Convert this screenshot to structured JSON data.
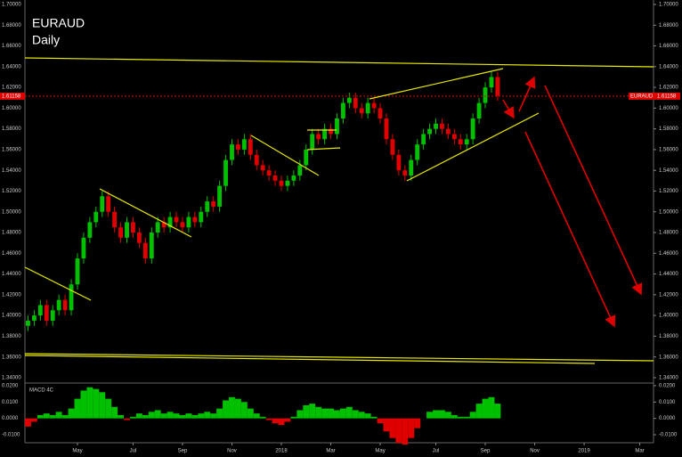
{
  "chart_data": {
    "type": "candlestick",
    "title": "EURAUD",
    "subtitle": "Daily",
    "categories": [
      null,
      null,
      null,
      null,
      null,
      null,
      null,
      null,
      "May",
      null,
      null,
      null,
      null,
      null,
      null,
      null,
      null,
      "Jul",
      null,
      null,
      null,
      null,
      null,
      null,
      null,
      "Sep",
      null,
      null,
      null,
      null,
      null,
      null,
      null,
      "Nov",
      null,
      null,
      null,
      null,
      null,
      null,
      null,
      "2018",
      null,
      null,
      null,
      null,
      null,
      null,
      null,
      "Mar",
      null,
      null,
      null,
      null,
      null,
      null,
      null,
      "May",
      null,
      null,
      null,
      null,
      null,
      null,
      null,
      null,
      "Jul",
      null,
      null,
      null,
      null,
      null,
      null,
      null,
      "Sep",
      null,
      null,
      null,
      null,
      null,
      null,
      null,
      "Nov",
      null,
      null,
      null,
      null,
      null,
      null,
      null,
      "2019",
      null,
      null,
      null,
      null,
      null,
      null,
      null,
      null,
      "Mar"
    ],
    "open": [
      1.39,
      1.395,
      1.4,
      1.41,
      1.395,
      1.405,
      1.415,
      1.405,
      1.43,
      1.455,
      1.475,
      1.49,
      1.5,
      1.515,
      1.5,
      1.485,
      1.475,
      1.49,
      1.48,
      1.47,
      1.455,
      1.48,
      1.49,
      1.485,
      1.495,
      1.49,
      1.485,
      1.495,
      1.49,
      1.5,
      1.51,
      1.505,
      1.525,
      1.55,
      1.565,
      1.56,
      1.57,
      1.555,
      1.545,
      1.54,
      1.535,
      1.53,
      1.525,
      1.53,
      1.535,
      1.545,
      1.56,
      1.575,
      1.57,
      1.58,
      1.575,
      1.59,
      1.605,
      1.61,
      1.6,
      1.595,
      1.605,
      1.6,
      1.59,
      1.57,
      1.555,
      1.54,
      1.535,
      1.55,
      1.565,
      1.575,
      1.58,
      1.585,
      1.58,
      1.575,
      1.57,
      1.565,
      1.57,
      1.59,
      1.605,
      1.62,
      1.63,
      null,
      null,
      null,
      null,
      null,
      null,
      null,
      null,
      null,
      null,
      null,
      null,
      null,
      null,
      null,
      null,
      null,
      null,
      null,
      null,
      null,
      null,
      null
    ],
    "high": [
      1.4,
      1.405,
      1.415,
      1.415,
      1.41,
      1.42,
      1.42,
      1.435,
      1.46,
      1.48,
      1.495,
      1.505,
      1.52,
      1.52,
      1.505,
      1.49,
      1.495,
      1.495,
      1.485,
      1.475,
      1.485,
      1.495,
      1.495,
      1.5,
      1.5,
      1.495,
      1.5,
      1.5,
      1.505,
      1.515,
      1.515,
      1.53,
      1.555,
      1.57,
      1.57,
      1.575,
      1.575,
      1.56,
      1.55,
      1.545,
      1.54,
      1.535,
      1.535,
      1.54,
      1.55,
      1.565,
      1.58,
      1.58,
      1.585,
      1.585,
      1.595,
      1.61,
      1.615,
      1.615,
      1.605,
      1.61,
      1.61,
      1.605,
      1.595,
      1.575,
      1.56,
      1.545,
      1.555,
      1.57,
      1.58,
      1.585,
      1.59,
      1.59,
      1.585,
      1.58,
      1.575,
      1.575,
      1.595,
      1.61,
      1.625,
      1.635,
      1.635,
      null,
      null,
      null,
      null,
      null,
      null,
      null,
      null,
      null,
      null,
      null,
      null,
      null,
      null,
      null,
      null,
      null,
      null,
      null,
      null,
      null,
      null,
      null
    ],
    "low": [
      1.385,
      1.39,
      1.395,
      1.39,
      1.39,
      1.4,
      1.4,
      1.4,
      1.425,
      1.45,
      1.47,
      1.485,
      1.495,
      1.495,
      1.48,
      1.47,
      1.47,
      1.475,
      1.465,
      1.45,
      1.45,
      1.475,
      1.48,
      1.48,
      1.485,
      1.48,
      1.48,
      1.485,
      1.485,
      1.495,
      1.5,
      1.5,
      1.52,
      1.545,
      1.555,
      1.555,
      1.55,
      1.54,
      1.535,
      1.53,
      1.525,
      1.52,
      1.52,
      1.525,
      1.53,
      1.54,
      1.555,
      1.565,
      1.565,
      1.57,
      1.57,
      1.585,
      1.6,
      1.595,
      1.59,
      1.59,
      1.595,
      1.585,
      1.565,
      1.55,
      1.535,
      1.53,
      1.53,
      1.545,
      1.56,
      1.57,
      1.575,
      1.575,
      1.57,
      1.565,
      1.56,
      1.56,
      1.565,
      1.585,
      1.6,
      1.615,
      1.607,
      null,
      null,
      null,
      null,
      null,
      null,
      null,
      null,
      null,
      null,
      null,
      null,
      null,
      null,
      null,
      null,
      null,
      null,
      null,
      null,
      null,
      null,
      null
    ],
    "close": [
      1.395,
      1.4,
      1.41,
      1.395,
      1.405,
      1.415,
      1.405,
      1.43,
      1.455,
      1.475,
      1.49,
      1.5,
      1.515,
      1.5,
      1.485,
      1.475,
      1.49,
      1.48,
      1.47,
      1.455,
      1.48,
      1.49,
      1.485,
      1.495,
      1.49,
      1.485,
      1.495,
      1.49,
      1.5,
      1.51,
      1.505,
      1.525,
      1.55,
      1.565,
      1.56,
      1.57,
      1.555,
      1.545,
      1.54,
      1.535,
      1.53,
      1.525,
      1.53,
      1.535,
      1.545,
      1.56,
      1.575,
      1.57,
      1.58,
      1.575,
      1.59,
      1.605,
      1.61,
      1.6,
      1.595,
      1.605,
      1.6,
      1.59,
      1.57,
      1.555,
      1.54,
      1.535,
      1.55,
      1.565,
      1.575,
      1.58,
      1.585,
      1.58,
      1.575,
      1.57,
      1.565,
      1.57,
      1.59,
      1.605,
      1.62,
      1.63,
      1.612,
      null,
      null,
      null,
      null,
      null,
      null,
      null,
      null,
      null,
      null,
      null,
      null,
      null,
      null,
      null,
      null,
      null,
      null,
      null,
      null,
      null,
      null,
      null
    ],
    "up_color": "#00c000",
    "down_color": "#e00000",
    "ylim": [
      1.3348,
      1.7043
    ],
    "yticks": [
      {
        "value": 1.34,
        "label": "1.34000"
      },
      {
        "value": 1.36,
        "label": "1.36000"
      },
      {
        "value": 1.38,
        "label": "1.38000"
      },
      {
        "value": 1.4,
        "label": "1.40000"
      },
      {
        "value": 1.42,
        "label": "1.42000"
      },
      {
        "value": 1.44,
        "label": "1.44000"
      },
      {
        "value": 1.46,
        "label": "1.46000"
      },
      {
        "value": 1.48,
        "label": "1.48000"
      },
      {
        "value": 1.5,
        "label": "1.50000"
      },
      {
        "value": 1.52,
        "label": "1.52000"
      },
      {
        "value": 1.54,
        "label": "1.54000"
      },
      {
        "value": 1.56,
        "label": "1.56000"
      },
      {
        "value": 1.58,
        "label": "1.58000"
      },
      {
        "value": 1.6,
        "label": "1.60000"
      },
      {
        "value": 1.62,
        "label": "1.62000"
      },
      {
        "value": 1.64,
        "label": "1.64000"
      },
      {
        "value": 1.66,
        "label": "1.66000"
      },
      {
        "value": 1.68,
        "label": "1.68000"
      },
      {
        "value": 1.7,
        "label": "1.70000"
      }
    ],
    "symbol": "EURAUD",
    "last_price": {
      "value": 1.61158,
      "label": "1.61158"
    },
    "macd": {
      "title": "MACD 4C",
      "values": [
        -0.005,
        -0.002,
        0.002,
        0.003,
        0.002,
        0.004,
        0.002,
        0.006,
        0.012,
        0.017,
        0.019,
        0.018,
        0.016,
        0.012,
        0.007,
        0.002,
        -0.001,
        0.001,
        0.003,
        0.002,
        0.004,
        0.005,
        0.003,
        0.004,
        0.003,
        0.002,
        0.003,
        0.002,
        0.003,
        0.004,
        0.003,
        0.006,
        0.011,
        0.013,
        0.012,
        0.01,
        0.006,
        0.003,
        0.001,
        -0.001,
        -0.003,
        -0.004,
        -0.002,
        0.001,
        0.005,
        0.008,
        0.009,
        0.007,
        0.006,
        0.006,
        0.005,
        0.006,
        0.007,
        0.005,
        0.004,
        0.003,
        0.001,
        -0.003,
        -0.008,
        -0.012,
        -0.015,
        -0.016,
        -0.012,
        -0.006,
        0.0,
        0.004,
        0.005,
        0.005,
        0.004,
        0.002,
        0.001,
        0.001,
        0.004,
        0.009,
        0.012,
        0.013,
        0.009,
        null,
        null,
        null,
        null,
        null,
        null,
        null,
        null,
        null,
        null,
        null,
        null,
        null,
        null,
        null,
        null,
        null,
        null,
        null,
        null,
        null,
        null,
        null
      ],
      "ylim": [
        -0.0149,
        0.0216
      ],
      "yticks": [
        {
          "value": -0.01,
          "label": "-0.0100"
        },
        {
          "value": 0,
          "label": "0.0000"
        },
        {
          "value": 0.01,
          "label": "0.0100"
        },
        {
          "value": 0.02,
          "label": "0.0200"
        }
      ]
    }
  }
}
